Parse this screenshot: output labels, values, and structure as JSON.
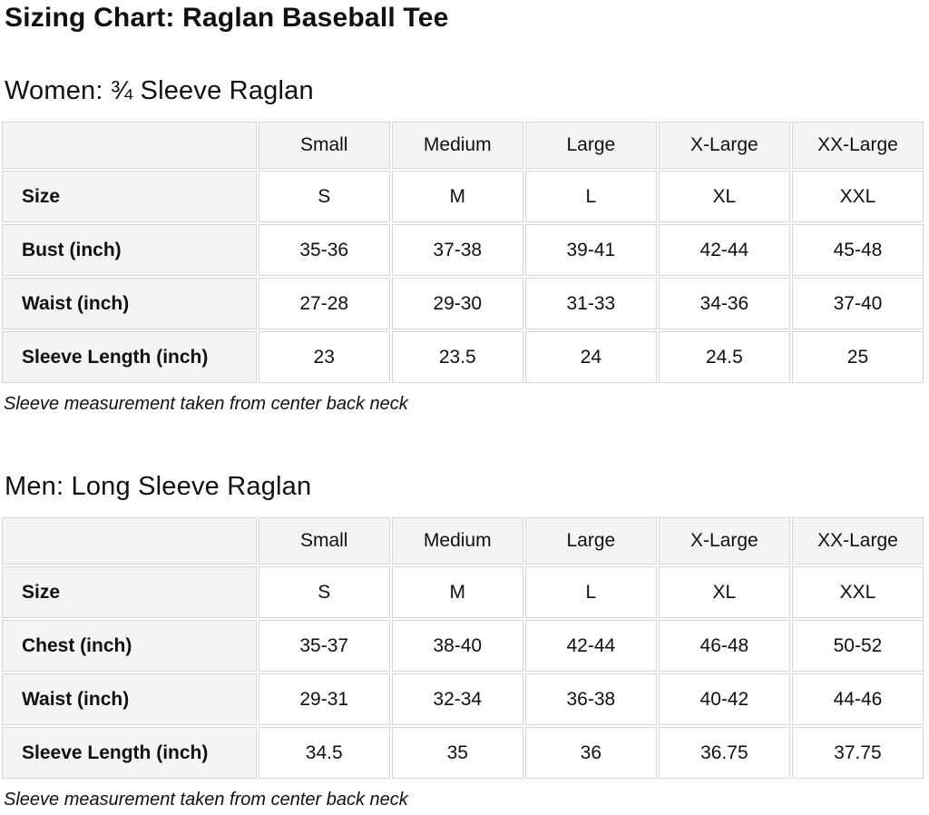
{
  "page": {
    "title": "Sizing Chart: Raglan Baseball Tee"
  },
  "colors": {
    "text": "#0f1111",
    "header_cell_background": "#f4f4f4",
    "data_cell_background": "#ffffff",
    "cell_border": "#d6d6d6"
  },
  "sections": [
    {
      "heading": "Women: ¾ Sleeve Raglan",
      "note": "Sleeve measurement taken from center back neck",
      "table": {
        "columns": [
          "",
          "Small",
          "Medium",
          "Large",
          "X-Large",
          "XX-Large"
        ],
        "rows": [
          {
            "label": "Size",
            "values": [
              "S",
              "M",
              "L",
              "XL",
              "XXL"
            ]
          },
          {
            "label": "Bust (inch)",
            "values": [
              "35-36",
              "37-38",
              "39-41",
              "42-44",
              "45-48"
            ]
          },
          {
            "label": "Waist (inch)",
            "values": [
              "27-28",
              "29-30",
              "31-33",
              "34-36",
              "37-40"
            ]
          },
          {
            "label": "Sleeve Length (inch)",
            "values": [
              "23",
              "23.5",
              "24",
              "24.5",
              "25"
            ]
          }
        ]
      }
    },
    {
      "heading": "Men: Long Sleeve Raglan",
      "note": "Sleeve measurement taken from center back neck",
      "table": {
        "columns": [
          "",
          "Small",
          "Medium",
          "Large",
          "X-Large",
          "XX-Large"
        ],
        "rows": [
          {
            "label": "Size",
            "values": [
              "S",
              "M",
              "L",
              "XL",
              "XXL"
            ]
          },
          {
            "label": "Chest (inch)",
            "values": [
              "35-37",
              "38-40",
              "42-44",
              "46-48",
              "50-52"
            ]
          },
          {
            "label": "Waist (inch)",
            "values": [
              "29-31",
              "32-34",
              "36-38",
              "40-42",
              "44-46"
            ]
          },
          {
            "label": "Sleeve Length (inch)",
            "values": [
              "34.5",
              "35",
              "36",
              "36.75",
              "37.75"
            ]
          }
        ]
      }
    }
  ]
}
